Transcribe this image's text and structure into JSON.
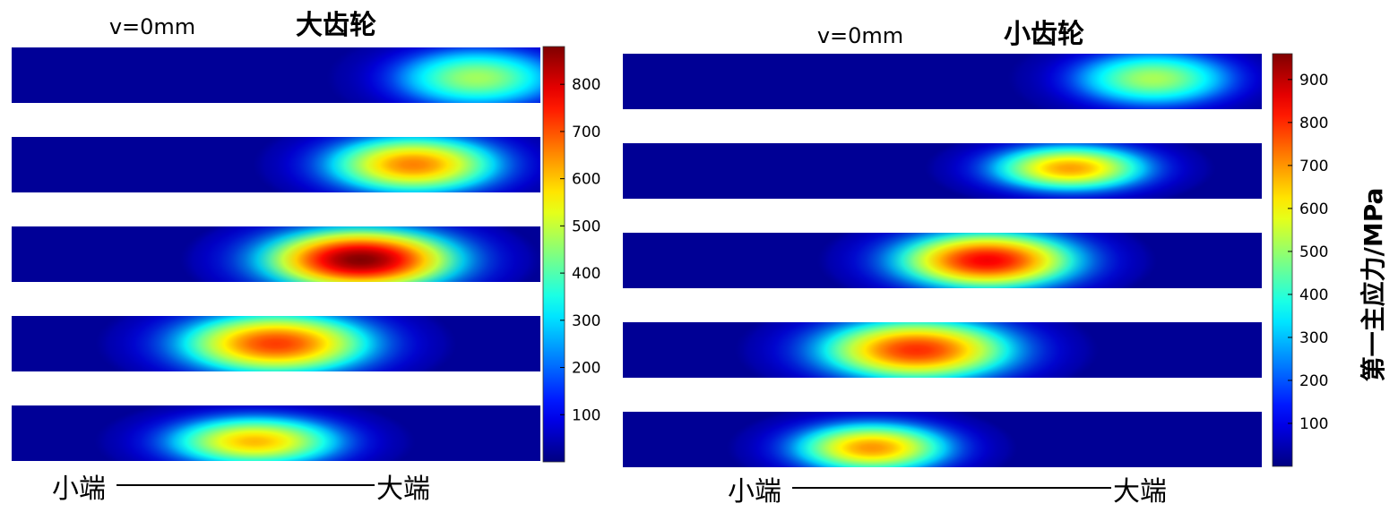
{
  "chart_data": [
    {
      "type": "heatmap",
      "title": "大齿轮",
      "annotation": "v=0mm",
      "axis_left_label": "小端",
      "axis_right_label": "大端",
      "colorbar": {
        "ticks": [
          100,
          200,
          300,
          400,
          500,
          600,
          700,
          800
        ],
        "range": [
          0,
          880
        ],
        "colormap": "jet",
        "label": ""
      },
      "strips": [
        {
          "hotspots": [
            {
              "x": 0.88,
              "y": 0.55,
              "peak": 470,
              "wx": 0.15,
              "wy": 0.7
            }
          ]
        },
        {
          "hotspots": [
            {
              "x": 0.76,
              "y": 0.5,
              "peak": 660,
              "wx": 0.16,
              "wy": 0.7
            }
          ]
        },
        {
          "hotspots": [
            {
              "x": 0.66,
              "y": 0.6,
              "peak": 880,
              "wx": 0.18,
              "wy": 0.75
            }
          ]
        },
        {
          "hotspots": [
            {
              "x": 0.5,
              "y": 0.5,
              "peak": 720,
              "wx": 0.18,
              "wy": 0.75
            }
          ]
        },
        {
          "hotspots": [
            {
              "x": 0.46,
              "y": 0.65,
              "peak": 610,
              "wx": 0.16,
              "wy": 0.6
            }
          ]
        }
      ]
    },
    {
      "type": "heatmap",
      "title": "小齿轮",
      "annotation": "v=0mm",
      "axis_left_label": "小端",
      "axis_right_label": "大端",
      "colorbar": {
        "ticks": [
          100,
          200,
          300,
          400,
          500,
          600,
          700,
          800,
          900
        ],
        "range": [
          0,
          960
        ],
        "colormap": "jet",
        "label": "第一主应力/MPa"
      },
      "strips": [
        {
          "hotspots": [
            {
              "x": 0.83,
              "y": 0.45,
              "peak": 520,
              "wx": 0.12,
              "wy": 0.65
            }
          ]
        },
        {
          "hotspots": [
            {
              "x": 0.7,
              "y": 0.45,
              "peak": 690,
              "wx": 0.12,
              "wy": 0.55
            }
          ]
        },
        {
          "hotspots": [
            {
              "x": 0.57,
              "y": 0.5,
              "peak": 850,
              "wx": 0.14,
              "wy": 0.7
            }
          ]
        },
        {
          "hotspots": [
            {
              "x": 0.46,
              "y": 0.5,
              "peak": 800,
              "wx": 0.15,
              "wy": 0.75
            }
          ]
        },
        {
          "hotspots": [
            {
              "x": 0.39,
              "y": 0.65,
              "peak": 700,
              "wx": 0.12,
              "wy": 0.6
            }
          ]
        }
      ]
    }
  ]
}
